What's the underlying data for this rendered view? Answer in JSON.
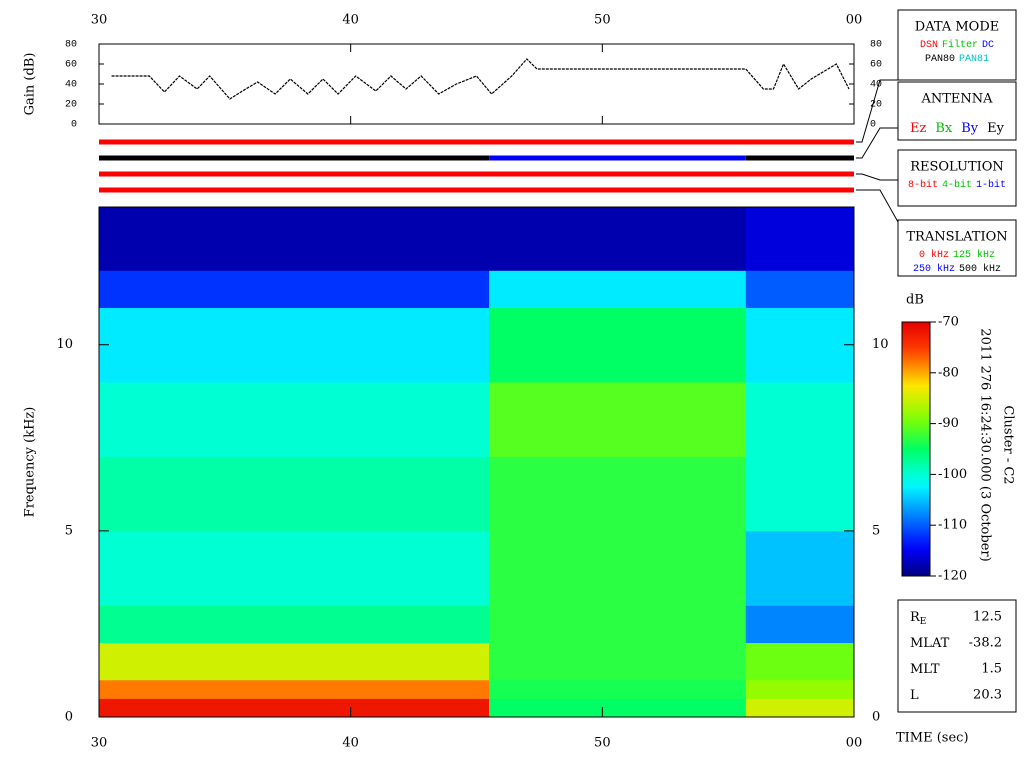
{
  "chart_data": [
    {
      "type": "line",
      "ylabel": "Gain (dB)",
      "color": "#000000",
      "x": [
        30.5,
        32,
        32.6,
        33.2,
        33.9,
        34.4,
        35.2,
        35.7,
        36.3,
        37,
        37.6,
        38.3,
        38.9,
        39.5,
        40.2,
        41,
        41.6,
        42.2,
        42.8,
        43.5,
        44.2,
        45,
        45.6,
        46.4,
        47,
        47.4,
        55.7,
        56.4,
        56.8,
        57.2,
        57.8,
        58.3,
        59.3,
        59.8
      ],
      "values": [
        48,
        48,
        32,
        48,
        35,
        48,
        25,
        33,
        42,
        30,
        45,
        30,
        45,
        30,
        48,
        33,
        48,
        35,
        48,
        30,
        40,
        48,
        30,
        48,
        65,
        55,
        55,
        35,
        35,
        60,
        35,
        45,
        60,
        35
      ],
      "xlim": [
        30,
        60
      ],
      "xticks": [
        30,
        40,
        50,
        {
          "value": 60,
          "label": "00"
        }
      ],
      "ylim": [
        0,
        80
      ],
      "yticks": [
        0,
        20,
        40,
        60,
        80
      ]
    },
    {
      "type": "timeline",
      "xlim": [
        30,
        60
      ],
      "rows": [
        {
          "edges": [
            30,
            60
          ],
          "colors": [
            "#ff0000"
          ]
        },
        {
          "edges": [
            30,
            45.5,
            55.7,
            60
          ],
          "colors": [
            "#000000",
            "#0000ff",
            "#000000"
          ]
        },
        {
          "edges": [
            30,
            60
          ],
          "colors": [
            "#ff0000"
          ]
        },
        {
          "edges": [
            30,
            60
          ],
          "colors": [
            "#ff0000"
          ]
        }
      ]
    },
    {
      "type": "heatmap",
      "ylabel": "Frequency (kHz)",
      "xlabel": "TIME (sec)",
      "x_edges": [
        30,
        45.5,
        55.7,
        60
      ],
      "y_edges": [
        0,
        0.5,
        1,
        2,
        3,
        5,
        7,
        9,
        11,
        12,
        13.7
      ],
      "z": [
        [
          -72,
          -95,
          -85
        ],
        [
          -78,
          -94,
          -88
        ],
        [
          -85,
          -93,
          -90
        ],
        [
          -97,
          -93,
          -108
        ],
        [
          -100,
          -93,
          -105
        ],
        [
          -98,
          -93,
          -100
        ],
        [
          -100,
          -91,
          -100
        ],
        [
          -103,
          -95,
          -103
        ],
        [
          -112,
          -103,
          -110
        ],
        [
          -118,
          -118,
          -116
        ]
      ],
      "xlim": [
        30,
        60
      ],
      "xticks": [
        30,
        40,
        50,
        {
          "value": 60,
          "label": "00"
        }
      ],
      "ylim": [
        0,
        13.7
      ],
      "yticks": [
        0,
        5,
        10
      ],
      "colorbar": {
        "label": "dB",
        "lim": [
          -120,
          -70
        ],
        "ticks": [
          -70,
          -80,
          -90,
          -100,
          -110,
          -120
        ]
      },
      "annotations": [
        "2011 276 16:24:30.000 (3 October)",
        "Cluster - C2"
      ]
    }
  ],
  "side_panels": {
    "data_mode": {
      "title": "DATA MODE",
      "rows": [
        [
          {
            "text": "DSN",
            "color": "#ff0000"
          },
          {
            "text": "Filter",
            "color": "#00c000"
          },
          {
            "text": "DC",
            "color": "#0000ff"
          }
        ],
        [
          {
            "text": "PAN80",
            "color": "#000000"
          },
          {
            "text": "PAN81",
            "color": "#00c0c0"
          }
        ]
      ]
    },
    "antenna": {
      "title": "ANTENNA",
      "rows": [
        [
          {
            "text": "Ez",
            "color": "#ff0000"
          },
          {
            "text": "Bx",
            "color": "#00c000"
          },
          {
            "text": "By",
            "color": "#0000ff"
          },
          {
            "text": "Ey",
            "color": "#000000"
          }
        ]
      ]
    },
    "resolution": {
      "title": "RESOLUTION",
      "rows": [
        [
          {
            "text": "8-bit",
            "color": "#ff0000"
          },
          {
            "text": "4-bit",
            "color": "#00c000"
          },
          {
            "text": "1-bit",
            "color": "#0000ff"
          }
        ]
      ]
    },
    "translation": {
      "title": "TRANSLATION",
      "rows": [
        [
          {
            "text": "0 kHz",
            "color": "#ff0000"
          },
          {
            "text": "125 kHz",
            "color": "#00c000"
          }
        ],
        [
          {
            "text": "250 kHz",
            "color": "#0000ff"
          },
          {
            "text": "500 kHz",
            "color": "#000000"
          }
        ]
      ]
    },
    "info": [
      {
        "label": "R",
        "subscript": "E",
        "value": 12.5
      },
      {
        "label": "MLAT",
        "value": -38.2
      },
      {
        "label": "MLT",
        "value": 1.5
      },
      {
        "label": "L",
        "value": 20.3
      }
    ]
  }
}
